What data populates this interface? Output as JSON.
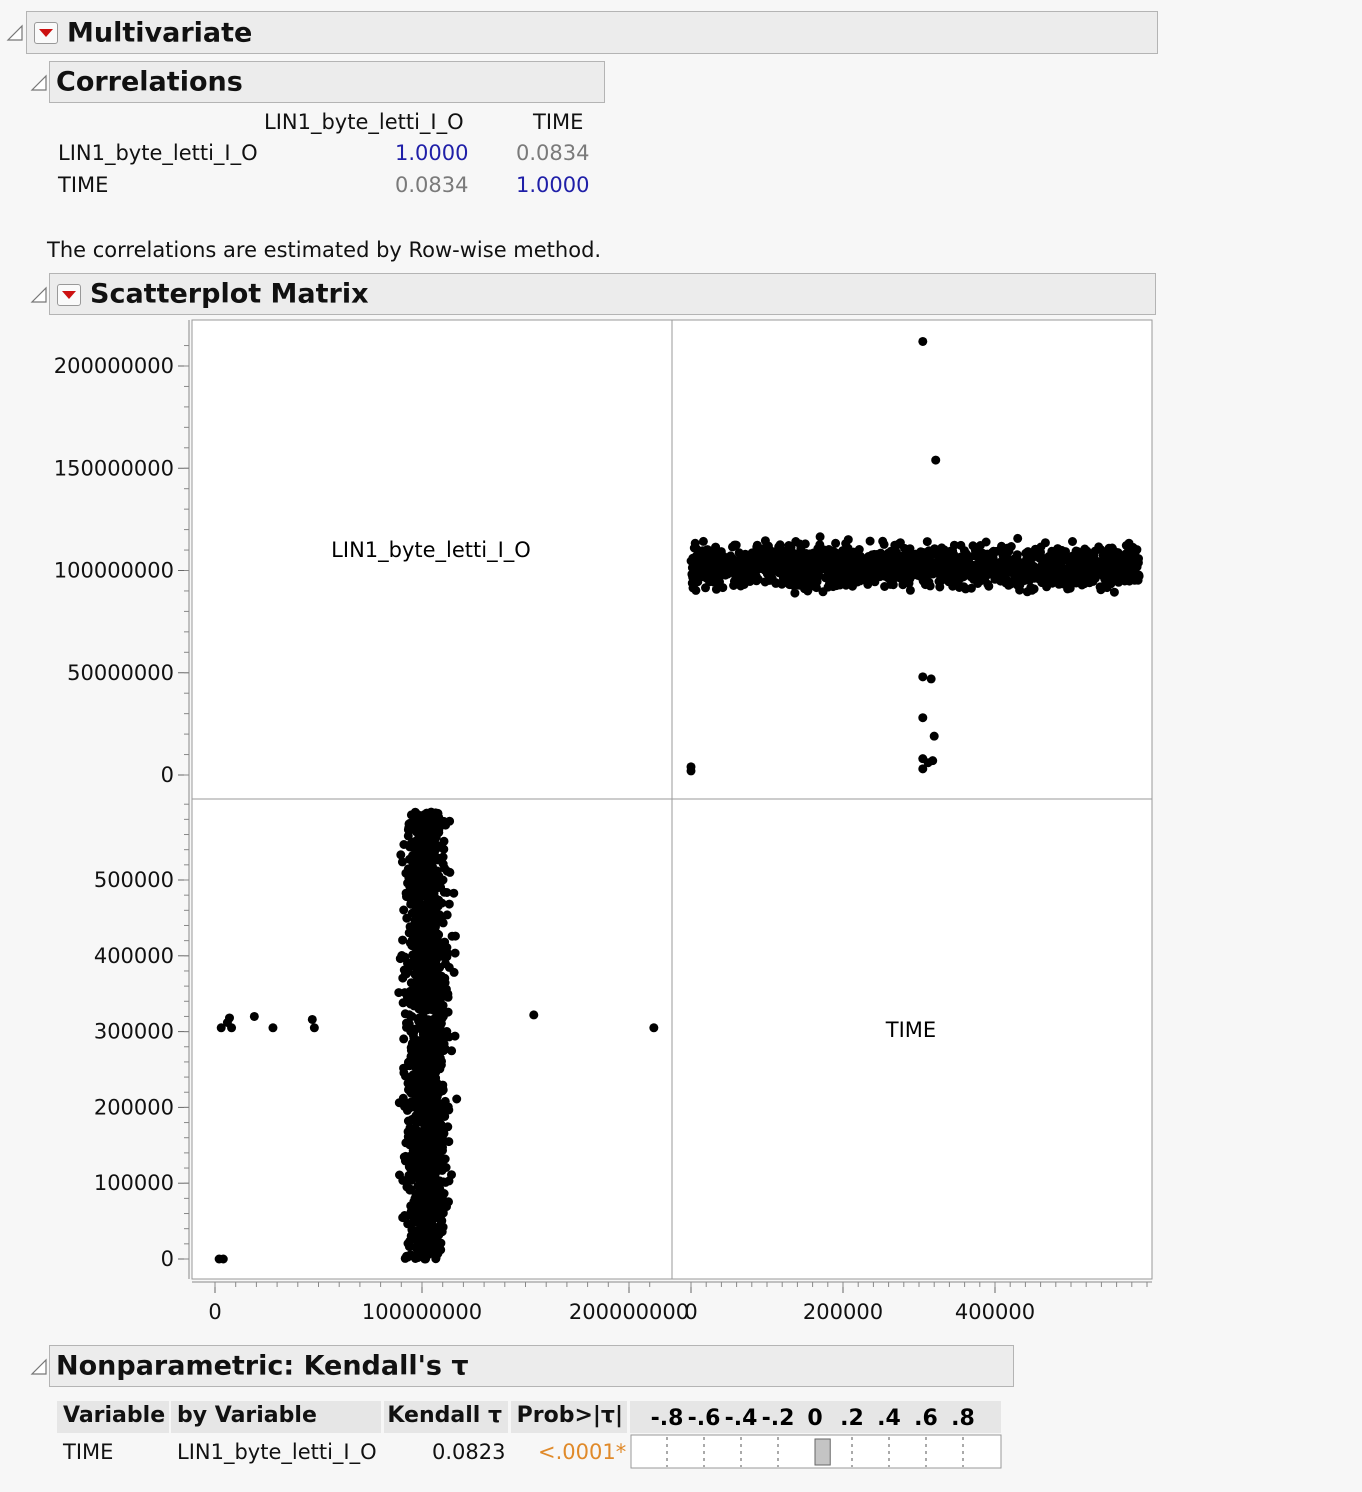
{
  "multivariate": {
    "title": "Multivariate"
  },
  "correlations": {
    "title": "Correlations",
    "columns": [
      "LIN1_byte_letti_I_O",
      "TIME"
    ],
    "rows": [
      {
        "label": "LIN1_byte_letti_I_O",
        "values": [
          "1.0000",
          "0.0834"
        ]
      },
      {
        "label": "TIME",
        "values": [
          "0.0834",
          "1.0000"
        ]
      }
    ],
    "note": "The correlations are estimated by Row-wise method."
  },
  "scatterplot_matrix": {
    "title": "Scatterplot Matrix"
  },
  "chart_data": {
    "type": "scatter",
    "variables": [
      "LIN1_byte_letti_I_O",
      "TIME"
    ],
    "axes": {
      "LIN1_byte_letti_I_O": {
        "y_ticks": [
          "200000000",
          "150000000",
          "100000000",
          "50000000",
          "0"
        ],
        "y_tick_values": [
          200000000,
          150000000,
          100000000,
          50000000,
          0
        ],
        "x_ticks": [
          "0",
          "100000000",
          "200000000"
        ],
        "x_tick_values": [
          0,
          100000000,
          200000000
        ],
        "range": [
          -5000000,
          225000000
        ]
      },
      "TIME": {
        "y_ticks": [
          "500000",
          "400000",
          "300000",
          "200000",
          "100000",
          "0"
        ],
        "y_tick_values": [
          500000,
          400000,
          300000,
          200000,
          100000,
          0
        ],
        "x_ticks": [
          "0",
          "200000",
          "400000"
        ],
        "x_tick_values": [
          0,
          200000,
          400000
        ],
        "range": [
          0,
          590000
        ]
      }
    },
    "panel_time_vs_lin1": {
      "x_variable": "TIME",
      "y_variable": "LIN1_byte_letti_I_O",
      "bulk": {
        "x_range": [
          0,
          590000
        ],
        "y_center": 102000000,
        "y_spread": 11000000
      },
      "outliers": [
        {
          "x": 305000,
          "y": 212000000
        },
        {
          "x": 322000,
          "y": 154000000
        },
        {
          "x": 305000,
          "y": 48000000
        },
        {
          "x": 316000,
          "y": 47000000
        },
        {
          "x": 305000,
          "y": 28000000
        },
        {
          "x": 320000,
          "y": 19000000
        },
        {
          "x": 305000,
          "y": 8000000
        },
        {
          "x": 312000,
          "y": 6000000
        },
        {
          "x": 318000,
          "y": 7000000
        },
        {
          "x": 305000,
          "y": 3000000
        },
        {
          "x": 0,
          "y": 2000000
        },
        {
          "x": 0,
          "y": 4000000
        }
      ]
    },
    "panel_lin1_vs_time": {
      "x_variable": "LIN1_byte_letti_I_O",
      "y_variable": "TIME",
      "bulk": {
        "x_center": 102000000,
        "x_spread": 11000000,
        "y_range": [
          0,
          590000
        ]
      },
      "outliers": [
        {
          "x": 212000000,
          "y": 305000
        },
        {
          "x": 154000000,
          "y": 322000
        },
        {
          "x": 48000000,
          "y": 305000
        },
        {
          "x": 47000000,
          "y": 316000
        },
        {
          "x": 28000000,
          "y": 305000
        },
        {
          "x": 19000000,
          "y": 320000
        },
        {
          "x": 8000000,
          "y": 305000
        },
        {
          "x": 6000000,
          "y": 312000
        },
        {
          "x": 7000000,
          "y": 318000
        },
        {
          "x": 3000000,
          "y": 305000
        },
        {
          "x": 2000000,
          "y": 0
        },
        {
          "x": 4000000,
          "y": 0
        }
      ]
    }
  },
  "kendall": {
    "title": "Nonparametric: Kendall's τ",
    "headers": {
      "variable": "Variable",
      "by_variable": "by Variable",
      "tau": "Kendall τ",
      "prob": "Prob>|τ|"
    },
    "scale_labels": [
      "-.8",
      "-.6",
      "-.4",
      "-.2",
      "0",
      ".2",
      ".4",
      ".6",
      ".8"
    ],
    "row": {
      "variable": "TIME",
      "by_variable": "LIN1_byte_letti_I_O",
      "tau": "0.0823",
      "prob": "<.0001*",
      "tau_value": 0.0823
    }
  },
  "colors": {
    "header_bg": "#ececec",
    "blue": "#1f1fa8",
    "orange": "#e08a2a",
    "red_arrow": "#cc1111"
  }
}
